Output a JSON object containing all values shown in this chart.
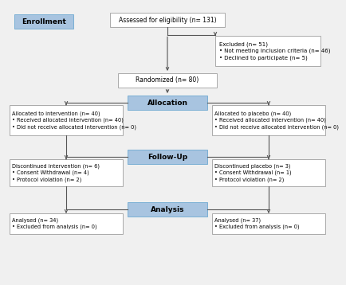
{
  "bg_color": "#f0f0f0",
  "blue_fill": "#a8c4e0",
  "blue_border": "#7aafd4",
  "white_fill": "#ffffff",
  "gray_border": "#aaaaaa",
  "text_color": "#000000",
  "arrow_color": "#555555",
  "enrollment_label": "Enrollment",
  "allocation_label": "Allocation",
  "followup_label": "Follow-Up",
  "analysis_label": "Analysis",
  "box1_text": "Assessed for eligibility (n= 131)",
  "box2_text": "Excluded (n= 51)\n• Not meeting inclusion criteria (n= 46)\n• Declined to participate (n= 5)",
  "box3_text": "Randomized (n= 80)",
  "box4_text": "Allocated to intervention (n= 40)\n• Received allocated intervention (n= 40)\n• Did not receive allocated intervention (n= 0)",
  "box5_text": "Allocated to placebo (n= 40)\n• Received allocated intervention (n= 40)\n• Did not receive allocated intervention (n= 0)",
  "box6_text": "Discontinued intervention (n= 6)\n• Consent Withdrawal (n= 4)\n• Protocol violation (n= 2)",
  "box7_text": "Discontinued placebo (n= 3)\n• Consent Withdrawal (n= 1)\n• Protocol violation (n= 2)",
  "box8_text": "Analysed (n= 34)\n• Excluded from analysis (n= 0)",
  "box9_text": "Analysed (n= 37)\n• Excluded from analysis (n= 0)"
}
